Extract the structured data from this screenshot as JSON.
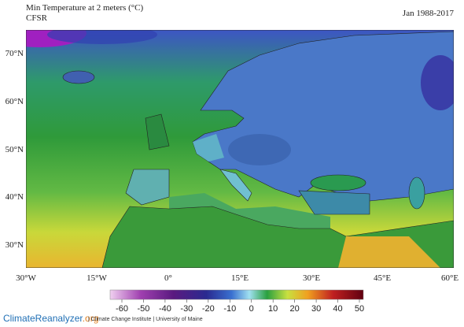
{
  "header": {
    "title": "Min Temperature at 2 meters (°C)",
    "source": "CFSR",
    "period": "Jan 1988-2017"
  },
  "map": {
    "lat_labels": [
      "70°N",
      "60°N",
      "50°N",
      "40°N",
      "30°N"
    ],
    "lon_labels": [
      "30°W",
      "15°W",
      "0°",
      "15°E",
      "30°E",
      "45°E",
      "60°E"
    ]
  },
  "colorbar": {
    "ticks": [
      -60,
      -50,
      -40,
      -30,
      -20,
      -10,
      0,
      10,
      20,
      30,
      40,
      50
    ]
  },
  "footer": {
    "site_name": "ClimateReanalyzer",
    "site_tld": ".org",
    "credits": "| Climate Change Institute | University of Maine"
  }
}
